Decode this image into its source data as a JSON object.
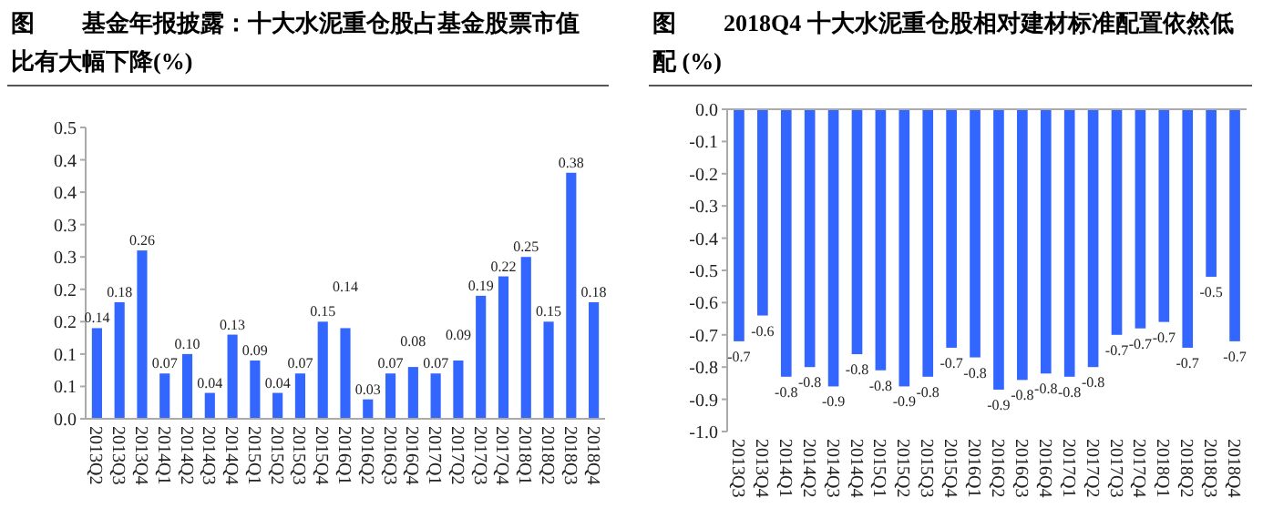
{
  "chart_data": [
    {
      "type": "bar",
      "title": "图　　基金年报披露：十大水泥重仓股占基金股票市值比有大幅下降(%)",
      "categories": [
        "2013Q2",
        "2013Q3",
        "2013Q4",
        "2014Q1",
        "2014Q2",
        "2014Q3",
        "2014Q4",
        "2015Q1",
        "2015Q2",
        "2015Q3",
        "2015Q4",
        "2016Q1",
        "2016Q2",
        "2016Q3",
        "2016Q4",
        "2017Q1",
        "2017Q2",
        "2017Q3",
        "2017Q4",
        "2018Q1",
        "2018Q2",
        "2018Q3",
        "2018Q4"
      ],
      "values": [
        0.14,
        0.18,
        0.26,
        0.07,
        0.1,
        0.04,
        0.13,
        0.09,
        0.04,
        0.07,
        0.15,
        0.14,
        0.03,
        0.07,
        0.08,
        0.07,
        0.09,
        0.19,
        0.22,
        0.25,
        0.15,
        0.38,
        0.18
      ],
      "value_labels": [
        "0.14",
        "0.18",
        "0.26",
        "0.07",
        "0.10",
        "0.04",
        "0.13",
        "0.09",
        "0.04",
        "0.07",
        "0.15",
        "0.14",
        "0.03",
        "0.07",
        "0.08",
        "0.07",
        "0.09",
        "0.19",
        "0.22",
        "0.25",
        "0.15",
        "0.38",
        "0.18"
      ],
      "color": "#3366ff",
      "ylim": [
        0,
        0.45
      ],
      "yticks": [
        {
          "value": 0,
          "label": "0.0"
        },
        {
          "value": 0.05,
          "label": "0.1"
        },
        {
          "value": 0.1,
          "label": "0.1"
        },
        {
          "value": 0.15,
          "label": "0.2"
        },
        {
          "value": 0.2,
          "label": "0.2"
        },
        {
          "value": 0.25,
          "label": "0.3"
        },
        {
          "value": 0.3,
          "label": "0.3"
        },
        {
          "value": 0.35,
          "label": "0.4"
        },
        {
          "value": 0.4,
          "label": "0.4"
        },
        {
          "value": 0.45,
          "label": "0.5"
        }
      ]
    },
    {
      "type": "bar",
      "title": "图　　2018Q4 十大水泥重仓股相对建材标准配置依然低配 (%)",
      "categories": [
        "2013Q3",
        "2013Q4",
        "2014Q1",
        "2014Q2",
        "2014Q3",
        "2014Q4",
        "2015Q1",
        "2015Q2",
        "2015Q3",
        "2015Q4",
        "2016Q1",
        "2016Q2",
        "2016Q3",
        "2016Q4",
        "2017Q1",
        "2017Q2",
        "2017Q3",
        "2017Q4",
        "2018Q1",
        "2018Q2",
        "2018Q3",
        "2018Q4"
      ],
      "values": [
        -0.72,
        -0.64,
        -0.83,
        -0.8,
        -0.86,
        -0.76,
        -0.81,
        -0.86,
        -0.83,
        -0.74,
        -0.77,
        -0.87,
        -0.84,
        -0.82,
        -0.83,
        -0.8,
        -0.7,
        -0.68,
        -0.66,
        -0.74,
        -0.52,
        -0.72
      ],
      "value_labels": [
        "-0.7",
        "-0.6",
        "-0.8",
        "-0.8",
        "-0.9",
        "-0.8",
        "-0.8",
        "-0.9",
        "-0.8",
        "-0.7",
        "-0.8",
        "-0.9",
        "-0.8",
        "-0.8",
        "-0.8",
        "-0.8",
        "-0.7",
        "-0.7",
        "-0.7",
        "-0.7",
        "-0.5",
        "-0.7"
      ],
      "color": "#3366ff",
      "ylim": [
        -1,
        0
      ],
      "yticks": [
        {
          "value": -1,
          "label": "-1.0"
        },
        {
          "value": -0.9,
          "label": "-0.9"
        },
        {
          "value": -0.8,
          "label": "-0.8"
        },
        {
          "value": -0.7,
          "label": "-0.7"
        },
        {
          "value": -0.6,
          "label": "-0.6"
        },
        {
          "value": -0.5,
          "label": "-0.5"
        },
        {
          "value": -0.4,
          "label": "-0.4"
        },
        {
          "value": -0.3,
          "label": "-0.3"
        },
        {
          "value": -0.2,
          "label": "-0.2"
        },
        {
          "value": -0.1,
          "label": "-0.1"
        },
        {
          "value": 0,
          "label": "0.0"
        }
      ]
    }
  ]
}
